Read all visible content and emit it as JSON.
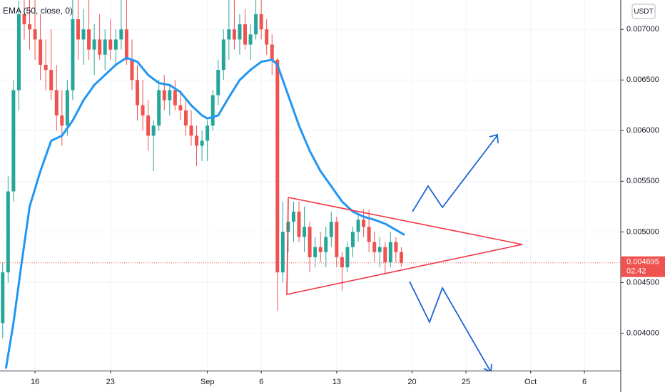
{
  "chart_data": {
    "type": "candlestick",
    "currency": "USDT",
    "countdown": "02:42",
    "xlim": [
      12.75,
      70.37
    ],
    "ylim": [
      0.00363,
      0.00729
    ],
    "grid": true,
    "xticks": [
      {
        "value": 16,
        "label": "16"
      },
      {
        "value": 23,
        "label": "23"
      },
      {
        "value": 32,
        "label": "Sep"
      },
      {
        "value": 37,
        "label": "6"
      },
      {
        "value": 44,
        "label": "13"
      },
      {
        "value": 51,
        "label": "20"
      },
      {
        "value": 56,
        "label": "25"
      },
      {
        "value": 62,
        "label": "Oct"
      },
      {
        "value": 67,
        "label": "6"
      }
    ],
    "yticks": [
      {
        "value": 0.004,
        "label": "0.004000"
      },
      {
        "value": 0.0045,
        "label": "0.004500"
      },
      {
        "value": 0.005,
        "label": "0.005000"
      },
      {
        "value": 0.0055,
        "label": "0.005500"
      },
      {
        "value": 0.006,
        "label": "0.006000"
      },
      {
        "value": 0.0065,
        "label": "0.006500"
      },
      {
        "value": 0.007,
        "label": "0.007000"
      }
    ],
    "candles": {
      "up_color": "#26a69a",
      "down_color": "#ef5350",
      "x": [
        13,
        13.5,
        14,
        14.5,
        15,
        15.5,
        16,
        16.5,
        17,
        17.5,
        18,
        18.5,
        19,
        19.5,
        20,
        20.5,
        21,
        21.5,
        22,
        22.5,
        23,
        23.5,
        24,
        24.5,
        25,
        25.5,
        26,
        26.5,
        27,
        27.5,
        28,
        28.5,
        29,
        29.5,
        30,
        30.5,
        31,
        31.5,
        32,
        32.5,
        33,
        33.5,
        34,
        34.5,
        35,
        35.5,
        36,
        36.5,
        37,
        37.5,
        38,
        38.5,
        39,
        39.5,
        40,
        40.5,
        41,
        41.5,
        42,
        42.5,
        43,
        43.5,
        44,
        44.5,
        45,
        45.5,
        46,
        46.5,
        47,
        47.5,
        48,
        48.5,
        49,
        49.5,
        50
      ],
      "ohlc": [
        [
          0.0041,
          0.0047,
          0.00395,
          0.0046
        ],
        [
          0.0046,
          0.00555,
          0.0045,
          0.0054
        ],
        [
          0.0054,
          0.0065,
          0.0053,
          0.0064
        ],
        [
          0.0064,
          0.00728,
          0.0062,
          0.00715
        ],
        [
          0.00715,
          0.00729,
          0.0069,
          0.00705
        ],
        [
          0.00705,
          0.00729,
          0.0068,
          0.007
        ],
        [
          0.007,
          0.00729,
          0.0067,
          0.0069
        ],
        [
          0.0069,
          0.00715,
          0.0065,
          0.00665
        ],
        [
          0.00665,
          0.0069,
          0.0064,
          0.0066
        ],
        [
          0.0066,
          0.007,
          0.0063,
          0.0064
        ],
        [
          0.0064,
          0.00665,
          0.006,
          0.00615
        ],
        [
          0.00615,
          0.0064,
          0.00585,
          0.00605
        ],
        [
          0.00605,
          0.0065,
          0.00595,
          0.0064
        ],
        [
          0.0064,
          0.00729,
          0.0063,
          0.0071
        ],
        [
          0.0071,
          0.00729,
          0.0067,
          0.0069
        ],
        [
          0.0069,
          0.0072,
          0.00665,
          0.007
        ],
        [
          0.007,
          0.00729,
          0.0067,
          0.0068
        ],
        [
          0.0068,
          0.00705,
          0.00655,
          0.0069
        ],
        [
          0.0069,
          0.00715,
          0.0067,
          0.00675
        ],
        [
          0.00675,
          0.007,
          0.0066,
          0.0069
        ],
        [
          0.0069,
          0.0071,
          0.0067,
          0.0068
        ],
        [
          0.0068,
          0.007,
          0.00665,
          0.0069
        ],
        [
          0.0069,
          0.00729,
          0.0068,
          0.007
        ],
        [
          0.007,
          0.00729,
          0.00665,
          0.0067
        ],
        [
          0.0067,
          0.0069,
          0.0064,
          0.0065
        ],
        [
          0.0065,
          0.00665,
          0.0061,
          0.00625
        ],
        [
          0.00625,
          0.0065,
          0.006,
          0.00615
        ],
        [
          0.00615,
          0.0063,
          0.0058,
          0.00595
        ],
        [
          0.00595,
          0.0061,
          0.0056,
          0.00605
        ],
        [
          0.00605,
          0.0065,
          0.006,
          0.0064
        ],
        [
          0.0064,
          0.00655,
          0.0062,
          0.0063
        ],
        [
          0.0063,
          0.00645,
          0.00615,
          0.0064
        ],
        [
          0.0064,
          0.0065,
          0.0062,
          0.00625
        ],
        [
          0.00625,
          0.0064,
          0.0061,
          0.0062
        ],
        [
          0.0062,
          0.0063,
          0.00595,
          0.00605
        ],
        [
          0.00605,
          0.0062,
          0.00585,
          0.00595
        ],
        [
          0.00595,
          0.00605,
          0.00565,
          0.00585
        ],
        [
          0.00585,
          0.006,
          0.0057,
          0.0059
        ],
        [
          0.0059,
          0.0061,
          0.0057,
          0.00605
        ],
        [
          0.00605,
          0.0064,
          0.006,
          0.00635
        ],
        [
          0.00635,
          0.0067,
          0.00625,
          0.0066
        ],
        [
          0.0066,
          0.007,
          0.0065,
          0.0069
        ],
        [
          0.0069,
          0.00729,
          0.0067,
          0.007
        ],
        [
          0.007,
          0.00729,
          0.0068,
          0.0069
        ],
        [
          0.0069,
          0.00715,
          0.00675,
          0.00705
        ],
        [
          0.00705,
          0.0072,
          0.0068,
          0.00685
        ],
        [
          0.00685,
          0.00705,
          0.0067,
          0.00695
        ],
        [
          0.00695,
          0.00729,
          0.0069,
          0.00715
        ],
        [
          0.00715,
          0.00729,
          0.0069,
          0.007
        ],
        [
          0.007,
          0.0071,
          0.00675,
          0.00685
        ],
        [
          0.00685,
          0.00695,
          0.00655,
          0.0067
        ],
        [
          0.0067,
          0.00672,
          0.00422,
          0.0046
        ],
        [
          0.0046,
          0.0053,
          0.0045,
          0.005
        ],
        [
          0.005,
          0.00532,
          0.0048,
          0.0051
        ],
        [
          0.0051,
          0.0053,
          0.0049,
          0.0052
        ],
        [
          0.0052,
          0.0053,
          0.0049,
          0.00495
        ],
        [
          0.00495,
          0.00525,
          0.0048,
          0.00505
        ],
        [
          0.00505,
          0.0051,
          0.0046,
          0.00475
        ],
        [
          0.00475,
          0.00495,
          0.00465,
          0.00485
        ],
        [
          0.00485,
          0.005,
          0.0047,
          0.0048
        ],
        [
          0.0048,
          0.00505,
          0.00465,
          0.00495
        ],
        [
          0.00495,
          0.0052,
          0.00485,
          0.0051
        ],
        [
          0.0051,
          0.00515,
          0.00465,
          0.00475
        ],
        [
          0.00475,
          0.0048,
          0.00442,
          0.00465
        ],
        [
          0.00465,
          0.0049,
          0.0046,
          0.00485
        ],
        [
          0.00485,
          0.00505,
          0.00475,
          0.005
        ],
        [
          0.005,
          0.00518,
          0.0049,
          0.00512
        ],
        [
          0.00512,
          0.00522,
          0.00495,
          0.00505
        ],
        [
          0.00505,
          0.00522,
          0.0048,
          0.0049
        ],
        [
          0.0049,
          0.005,
          0.0047,
          0.0048
        ],
        [
          0.0048,
          0.00495,
          0.00465,
          0.00485
        ],
        [
          0.00485,
          0.0049,
          0.00458,
          0.0047
        ],
        [
          0.0047,
          0.005,
          0.00465,
          0.0049
        ],
        [
          0.0049,
          0.00495,
          0.0047,
          0.0048
        ],
        [
          0.0048,
          0.00485,
          0.004655,
          0.004695
        ]
      ]
    },
    "series": [
      {
        "name": "EMA (50, close, 0)",
        "color": "#2196f3",
        "x": [
          13.3,
          14,
          14.7,
          15.5,
          16.5,
          17.5,
          18.5,
          19.5,
          20.5,
          21.5,
          22.5,
          23.5,
          24.5,
          25.5,
          26.5,
          27.5,
          28.5,
          29.5,
          30.5,
          31.5,
          32,
          33,
          34,
          35,
          36,
          37,
          38,
          38.5,
          39.5,
          40.5,
          41.5,
          42.5,
          43.5,
          44.5,
          45.5,
          46.5,
          47.5,
          48.5,
          49.5,
          50.3
        ],
        "values": [
          0.00365,
          0.0041,
          0.00465,
          0.00525,
          0.0056,
          0.0059,
          0.00595,
          0.0061,
          0.0063,
          0.00645,
          0.00655,
          0.00665,
          0.00672,
          0.00668,
          0.00655,
          0.00647,
          0.00645,
          0.00638,
          0.00625,
          0.00615,
          0.00612,
          0.00615,
          0.00633,
          0.0065,
          0.0066,
          0.00668,
          0.0067,
          0.00665,
          0.00635,
          0.00605,
          0.0058,
          0.0056,
          0.00545,
          0.0053,
          0.0052,
          0.00515,
          0.00512,
          0.00508,
          0.00502,
          0.00497
        ]
      }
    ]
  }
}
